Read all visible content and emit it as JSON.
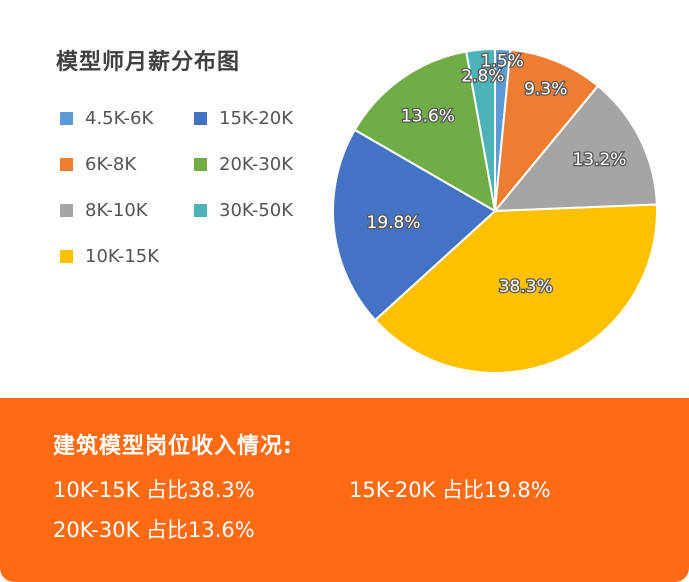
{
  "chart_title": "模型师月薪分布图",
  "chart_data": {
    "type": "pie",
    "title": "模型师月薪分布图",
    "legend_position": "left",
    "slices": [
      {
        "name": "4.5K-6K",
        "value": 1.5,
        "label": "1.5%",
        "color": "#5b9bd5"
      },
      {
        "name": "6K-8K",
        "value": 9.3,
        "label": "9.3%",
        "color": "#ed7d31"
      },
      {
        "name": "8K-10K",
        "value": 13.2,
        "label": "13.2%",
        "color": "#a5a5a5"
      },
      {
        "name": "10K-15K",
        "value": 38.3,
        "label": "38.3%",
        "color": "#ffc000"
      },
      {
        "name": "15K-20K",
        "value": 19.8,
        "label": "19.8%",
        "color": "#4472c4"
      },
      {
        "name": "20K-30K",
        "value": 13.6,
        "label": "13.6%",
        "color": "#70ad47"
      },
      {
        "name": "30K-50K",
        "value": 2.8,
        "label": "2.8%",
        "color": "#4cb3b8"
      }
    ]
  },
  "legend": [
    {
      "label": "4.5K-6K",
      "color": "#5b9bd5"
    },
    {
      "label": "15K-20K",
      "color": "#4472c4"
    },
    {
      "label": "6K-8K",
      "color": "#ed7d31"
    },
    {
      "label": "20K-30K",
      "color": "#70ad47"
    },
    {
      "label": "8K-10K",
      "color": "#a5a5a5"
    },
    {
      "label": "30K-50K",
      "color": "#4cb3b8"
    },
    {
      "label": "10K-15K",
      "color": "#ffc000"
    }
  ],
  "summary": {
    "title": "建筑模型岗位收入情况:",
    "lines": [
      "10K-15K 占比38.3%",
      "15K-20K 占比19.8%",
      "20K-30K 占比13.6%"
    ],
    "background_color": "#ff6a13"
  }
}
